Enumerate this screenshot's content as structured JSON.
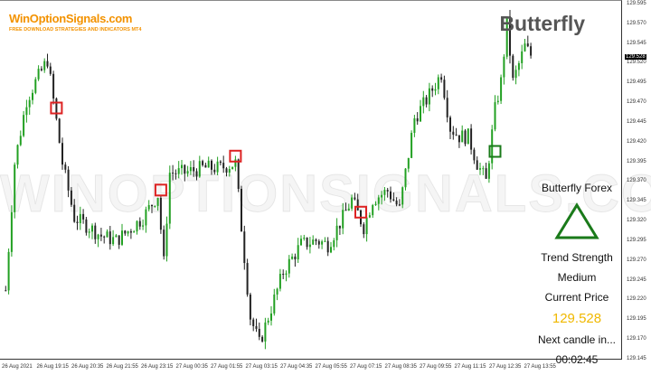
{
  "logo": {
    "title": "WinOptionSignals.com",
    "subtitle": "FREE DOWNLOAD STRATEGIES AND INDICATORS MT4"
  },
  "chart_title": "Butterfly",
  "watermark": "WINOPTIONSIGNALS.COM",
  "panel": {
    "name": "Butterfly Forex",
    "trend_icon": "triangle-up-icon",
    "trend_color": "#1a7a1a",
    "trend_label": "Trend Strength",
    "trend_value": "Medium",
    "price_label": "Current Price",
    "price": "129.528",
    "candle_label": "Next candle in...",
    "countdown": "00:02:45"
  },
  "price_axis": [
    "129.595",
    "129.570",
    "129.545",
    "129.520",
    "129.495",
    "129.470",
    "129.445",
    "129.420",
    "129.395",
    "129.370",
    "129.345",
    "129.320",
    "129.295",
    "129.270",
    "129.245",
    "129.220",
    "129.195",
    "129.170",
    "129.145"
  ],
  "current_price_tag": "129.528",
  "time_axis": [
    "26 Aug 2021",
    "26 Aug 19:15",
    "26 Aug 20:35",
    "26 Aug 21:55",
    "26 Aug 23:15",
    "27 Aug 00:35",
    "27 Aug 01:55",
    "27 Aug 03:15",
    "27 Aug 04:35",
    "27 Aug 05:55",
    "27 Aug 07:15",
    "27 Aug 08:35",
    "27 Aug 09:55",
    "27 Aug 11:15",
    "27 Aug 12:35",
    "27 Aug 13:55"
  ],
  "colors": {
    "bull": "#22a022",
    "bear": "#222222",
    "sell_marker": "#dd2222",
    "buy_marker": "#1a7a1a"
  },
  "price_path": [
    [
      1,
      129.234
    ],
    [
      4,
      129.395
    ],
    [
      8,
      129.475
    ],
    [
      11,
      129.498
    ],
    [
      15,
      129.526
    ],
    [
      17,
      129.475
    ],
    [
      20,
      129.395
    ],
    [
      24,
      129.326
    ],
    [
      29,
      129.314
    ],
    [
      33,
      129.303
    ],
    [
      38,
      129.297
    ],
    [
      42,
      129.309
    ],
    [
      47,
      129.326
    ],
    [
      52,
      129.355
    ],
    [
      54,
      129.269
    ],
    [
      56,
      129.383
    ],
    [
      61,
      129.383
    ],
    [
      67,
      129.389
    ],
    [
      73,
      129.389
    ],
    [
      78,
      129.395
    ],
    [
      80,
      129.314
    ],
    [
      83,
      129.2
    ],
    [
      86,
      129.166
    ],
    [
      89,
      129.2
    ],
    [
      94,
      129.257
    ],
    [
      100,
      129.292
    ],
    [
      105,
      129.297
    ],
    [
      109,
      129.292
    ],
    [
      114,
      129.326
    ],
    [
      117,
      129.349
    ],
    [
      121,
      129.314
    ],
    [
      124,
      129.349
    ],
    [
      129,
      129.36
    ],
    [
      133,
      129.337
    ],
    [
      138,
      129.452
    ],
    [
      142,
      129.475
    ],
    [
      147,
      129.509
    ],
    [
      150,
      129.44
    ],
    [
      153,
      129.429
    ],
    [
      156,
      129.429
    ],
    [
      159,
      129.395
    ],
    [
      162,
      129.372
    ],
    [
      165,
      129.463
    ],
    [
      167,
      129.498
    ],
    [
      169,
      129.572
    ],
    [
      171,
      129.498
    ],
    [
      175,
      129.543
    ],
    [
      177,
      129.532
    ]
  ],
  "signals": [
    {
      "type": "sell",
      "candle": 18,
      "price": 129.465
    },
    {
      "type": "sell",
      "candle": 53,
      "price": 129.361
    },
    {
      "type": "sell",
      "candle": 78,
      "price": 129.404
    },
    {
      "type": "sell",
      "candle": 120,
      "price": 129.333
    },
    {
      "type": "buy",
      "candle": 165,
      "price": 129.41
    }
  ]
}
